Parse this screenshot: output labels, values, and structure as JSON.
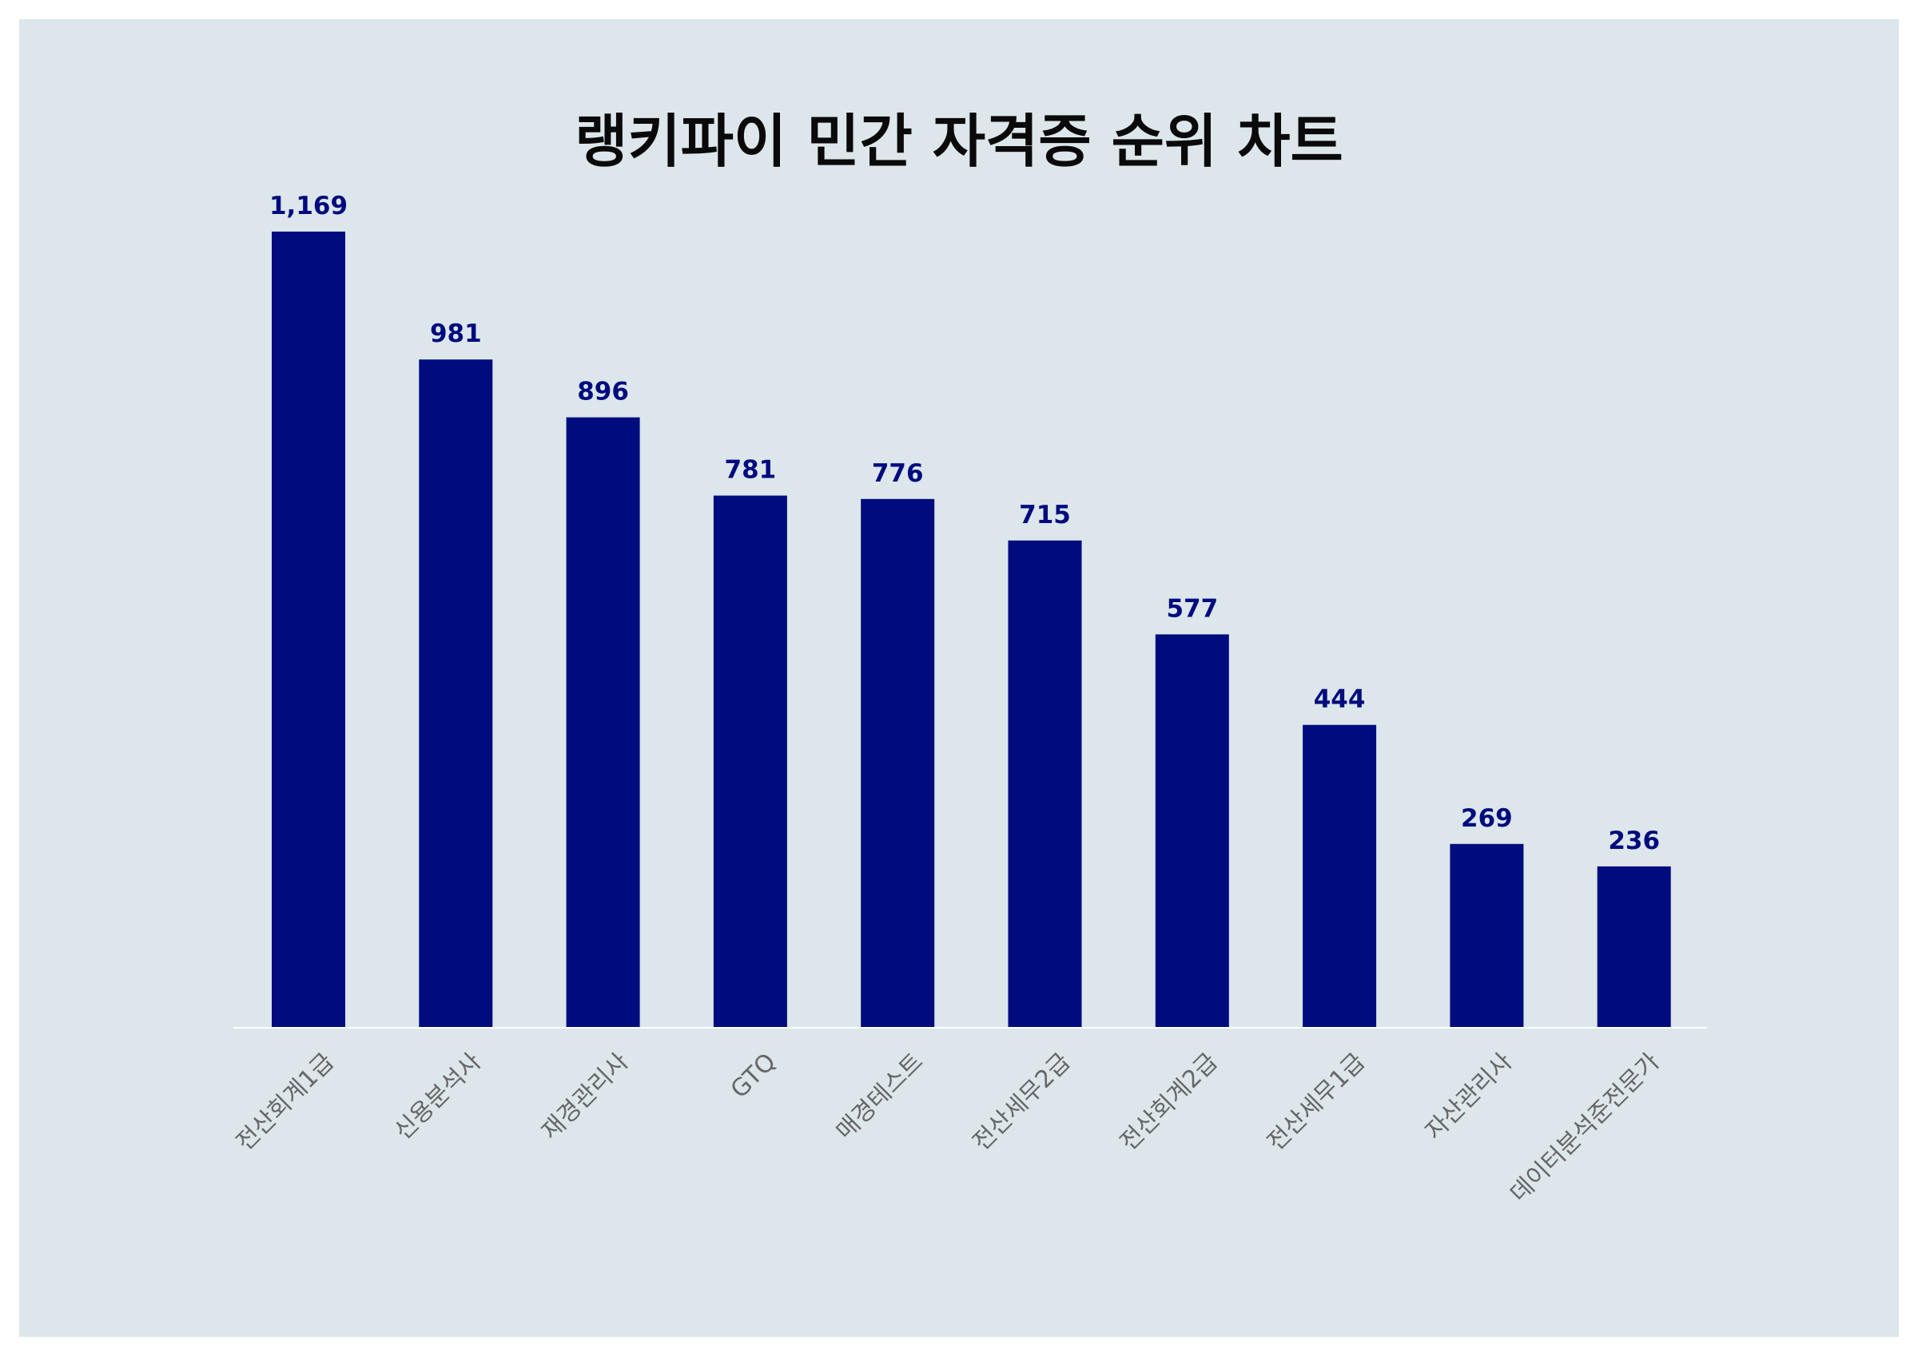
{
  "chart_data": {
    "type": "bar",
    "title": "랭키파이 민간 자격증 순위 차트",
    "xlabel": "",
    "ylabel": "",
    "categories": [
      "전산회계1급",
      "신용분석사",
      "재경관리사",
      "GTQ",
      "매경테스트",
      "전산세무2급",
      "전산회계2급",
      "전산세무1급",
      "자산관리사",
      "데이터분석준전문가"
    ],
    "value_labels": [
      "1,169",
      "981",
      "896",
      "781",
      "776",
      "715",
      "577",
      "444",
      "269",
      "236"
    ],
    "values": [
      1169,
      981,
      896,
      781,
      776,
      715,
      577,
      444,
      269,
      236
    ],
    "ylim": [
      0,
      1169
    ],
    "grid": false,
    "legend": "none"
  },
  "colors": {
    "bar": "#000c7d",
    "value_label": "#000c7d",
    "tick_label": "#666666",
    "background": "#dce6eb",
    "axis": "#ffffff"
  }
}
